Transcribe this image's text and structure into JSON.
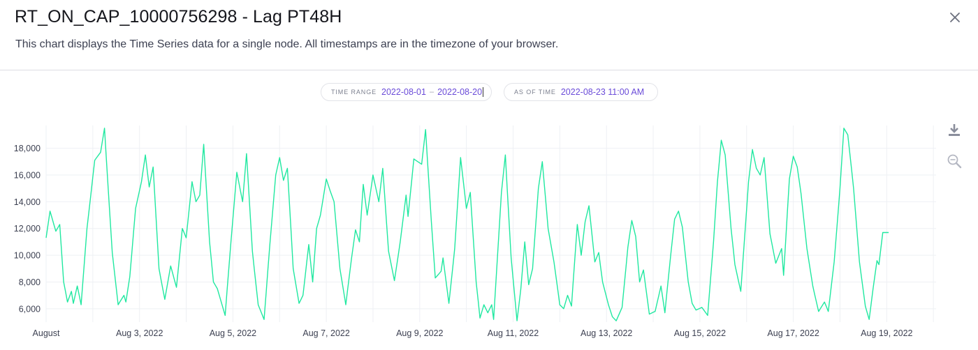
{
  "header": {
    "title": "RT_ON_CAP_10000756298 - Lag PT48H",
    "subtitle": "This chart displays the Time Series data for a single node. All timestamps are in the timezone of your browser.",
    "close_icon": "close-icon"
  },
  "controls": {
    "time_range_label": "TIME RANGE",
    "time_range_start": "2022-08-01",
    "time_range_sep": "–",
    "time_range_end": "2022-08-20",
    "as_of_label": "AS OF TIME",
    "as_of_value": "2022-08-23 11:00 AM"
  },
  "toolbar": {
    "download_icon": "download-icon",
    "zoom_icon": "zoom-out-icon"
  },
  "colors": {
    "line": "#20e8a0",
    "accent": "#6a4bd8",
    "axis_text": "#3d4152",
    "grid": "#eef0f4"
  },
  "chart_data": {
    "type": "line",
    "xlabel": "",
    "ylabel": "",
    "x_unit": "date",
    "x_range": [
      "2022-08-01",
      "2022-08-19 22:00"
    ],
    "x_ticks": [
      "August",
      "Aug 3, 2022",
      "Aug 5, 2022",
      "Aug 7, 2022",
      "Aug 9, 2022",
      "Aug 11, 2022",
      "Aug 13, 2022",
      "Aug 15, 2022",
      "Aug 17, 2022",
      "Aug 19, 2022"
    ],
    "y_ticks": [
      "6,000",
      "8,000",
      "10,000",
      "12,000",
      "14,000",
      "16,000",
      "18,000"
    ],
    "ylim": [
      5000,
      19700
    ],
    "grid": true,
    "sample_interval_hours": 1,
    "keypoints": [
      [
        "2022-08-01 00:00",
        11300
      ],
      [
        "2022-08-01 02:00",
        13300
      ],
      [
        "2022-08-01 05:00",
        11800
      ],
      [
        "2022-08-01 07:00",
        12300
      ],
      [
        "2022-08-01 09:00",
        8000
      ],
      [
        "2022-08-01 11:00",
        6500
      ],
      [
        "2022-08-01 13:00",
        7300
      ],
      [
        "2022-08-01 14:00",
        6400
      ],
      [
        "2022-08-01 16:00",
        7700
      ],
      [
        "2022-08-01 18:00",
        6300
      ],
      [
        "2022-08-01 21:00",
        12000
      ],
      [
        "2022-08-02 01:00",
        17100
      ],
      [
        "2022-08-02 04:00",
        17700
      ],
      [
        "2022-08-02 06:00",
        19500
      ],
      [
        "2022-08-02 08:00",
        14800
      ],
      [
        "2022-08-02 10:00",
        10200
      ],
      [
        "2022-08-02 13:00",
        6300
      ],
      [
        "2022-08-02 16:00",
        7000
      ],
      [
        "2022-08-02 17:00",
        6500
      ],
      [
        "2022-08-02 19:00",
        8400
      ],
      [
        "2022-08-02 22:00",
        13500
      ],
      [
        "2022-08-03 01:00",
        15500
      ],
      [
        "2022-08-03 03:00",
        17500
      ],
      [
        "2022-08-03 05:00",
        15100
      ],
      [
        "2022-08-03 07:00",
        16600
      ],
      [
        "2022-08-03 10:00",
        9000
      ],
      [
        "2022-08-03 13:00",
        6700
      ],
      [
        "2022-08-03 16:00",
        9200
      ],
      [
        "2022-08-03 19:00",
        7600
      ],
      [
        "2022-08-03 22:00",
        12000
      ],
      [
        "2022-08-04 00:00",
        11300
      ],
      [
        "2022-08-04 03:00",
        15500
      ],
      [
        "2022-08-04 05:00",
        14000
      ],
      [
        "2022-08-04 07:00",
        14500
      ],
      [
        "2022-08-04 09:00",
        18300
      ],
      [
        "2022-08-04 12:00",
        11000
      ],
      [
        "2022-08-04 14:00",
        8000
      ],
      [
        "2022-08-04 16:00",
        7500
      ],
      [
        "2022-08-04 19:00",
        6000
      ],
      [
        "2022-08-04 20:00",
        5500
      ],
      [
        "2022-08-04 23:00",
        11000
      ],
      [
        "2022-08-05 02:00",
        16200
      ],
      [
        "2022-08-05 05:00",
        14000
      ],
      [
        "2022-08-05 07:00",
        17600
      ],
      [
        "2022-08-05 10:00",
        10300
      ],
      [
        "2022-08-05 13:00",
        6300
      ],
      [
        "2022-08-05 16:00",
        5200
      ],
      [
        "2022-08-05 19:00",
        10800
      ],
      [
        "2022-08-05 22:00",
        16000
      ],
      [
        "2022-08-06 00:00",
        17300
      ],
      [
        "2022-08-06 02:00",
        15600
      ],
      [
        "2022-08-06 04:00",
        16500
      ],
      [
        "2022-08-06 07:00",
        9000
      ],
      [
        "2022-08-06 10:00",
        6400
      ],
      [
        "2022-08-06 12:00",
        7000
      ],
      [
        "2022-08-06 15:00",
        10800
      ],
      [
        "2022-08-06 17:00",
        8000
      ],
      [
        "2022-08-06 19:00",
        12000
      ],
      [
        "2022-08-06 21:00",
        13000
      ],
      [
        "2022-08-07 00:00",
        15700
      ],
      [
        "2022-08-07 02:00",
        14800
      ],
      [
        "2022-08-07 04:00",
        14000
      ],
      [
        "2022-08-07 07:00",
        9000
      ],
      [
        "2022-08-07 10:00",
        6300
      ],
      [
        "2022-08-07 13:00",
        9800
      ],
      [
        "2022-08-07 15:00",
        11900
      ],
      [
        "2022-08-07 17:00",
        11000
      ],
      [
        "2022-08-07 19:00",
        15300
      ],
      [
        "2022-08-07 21:00",
        13000
      ],
      [
        "2022-08-08 00:00",
        16000
      ],
      [
        "2022-08-08 03:00",
        14000
      ],
      [
        "2022-08-08 05:00",
        16500
      ],
      [
        "2022-08-08 08:00",
        10300
      ],
      [
        "2022-08-08 11:00",
        8100
      ],
      [
        "2022-08-08 14:00",
        11000
      ],
      [
        "2022-08-08 17:00",
        14500
      ],
      [
        "2022-08-08 18:00",
        12900
      ],
      [
        "2022-08-08 21:00",
        17200
      ],
      [
        "2022-08-09 01:00",
        16800
      ],
      [
        "2022-08-09 03:00",
        19400
      ],
      [
        "2022-08-09 06:00",
        12500
      ],
      [
        "2022-08-09 08:00",
        8300
      ],
      [
        "2022-08-09 11:00",
        8800
      ],
      [
        "2022-08-09 12:00",
        9800
      ],
      [
        "2022-08-09 15:00",
        6400
      ],
      [
        "2022-08-09 18:00",
        10500
      ],
      [
        "2022-08-09 21:00",
        17300
      ],
      [
        "2022-08-10 00:00",
        13500
      ],
      [
        "2022-08-10 02:00",
        14700
      ],
      [
        "2022-08-10 05:00",
        8000
      ],
      [
        "2022-08-10 07:00",
        5300
      ],
      [
        "2022-08-10 09:00",
        6300
      ],
      [
        "2022-08-10 11:00",
        5700
      ],
      [
        "2022-08-10 13:00",
        6300
      ],
      [
        "2022-08-10 14:00",
        5200
      ],
      [
        "2022-08-10 18:00",
        14700
      ],
      [
        "2022-08-10 20:00",
        17500
      ],
      [
        "2022-08-10 23:00",
        9800
      ],
      [
        "2022-08-11 02:00",
        5100
      ],
      [
        "2022-08-11 04:00",
        7500
      ],
      [
        "2022-08-11 06:00",
        11000
      ],
      [
        "2022-08-11 08:00",
        7800
      ],
      [
        "2022-08-11 10:00",
        9000
      ],
      [
        "2022-08-11 13:00",
        15000
      ],
      [
        "2022-08-11 15:00",
        17000
      ],
      [
        "2022-08-11 18:00",
        12000
      ],
      [
        "2022-08-11 21:00",
        9500
      ],
      [
        "2022-08-12 00:00",
        6300
      ],
      [
        "2022-08-12 02:00",
        6000
      ],
      [
        "2022-08-12 04:00",
        7000
      ],
      [
        "2022-08-12 06:00",
        6200
      ],
      [
        "2022-08-12 09:00",
        12300
      ],
      [
        "2022-08-12 11:00",
        10000
      ],
      [
        "2022-08-12 13:00",
        12500
      ],
      [
        "2022-08-12 15:00",
        13700
      ],
      [
        "2022-08-12 18:00",
        9500
      ],
      [
        "2022-08-12 20:00",
        10200
      ],
      [
        "2022-08-12 22:00",
        8000
      ],
      [
        "2022-08-13 01:00",
        6300
      ],
      [
        "2022-08-13 03:00",
        5400
      ],
      [
        "2022-08-13 05:00",
        5100
      ],
      [
        "2022-08-13 08:00",
        6100
      ],
      [
        "2022-08-13 11:00",
        10600
      ],
      [
        "2022-08-13 13:00",
        12600
      ],
      [
        "2022-08-13 15:00",
        11400
      ],
      [
        "2022-08-13 17:00",
        8000
      ],
      [
        "2022-08-13 19:00",
        8900
      ],
      [
        "2022-08-13 22:00",
        5600
      ],
      [
        "2022-08-14 01:00",
        5800
      ],
      [
        "2022-08-14 04:00",
        7700
      ],
      [
        "2022-08-14 06:00",
        5700
      ],
      [
        "2022-08-14 09:00",
        10000
      ],
      [
        "2022-08-14 11:00",
        12700
      ],
      [
        "2022-08-14 13:00",
        13300
      ],
      [
        "2022-08-14 15:00",
        12100
      ],
      [
        "2022-08-14 18:00",
        8000
      ],
      [
        "2022-08-14 20:00",
        6400
      ],
      [
        "2022-08-14 22:00",
        5900
      ],
      [
        "2022-08-15 01:00",
        6100
      ],
      [
        "2022-08-15 04:00",
        5500
      ],
      [
        "2022-08-15 07:00",
        11000
      ],
      [
        "2022-08-15 09:00",
        15500
      ],
      [
        "2022-08-15 11:00",
        18600
      ],
      [
        "2022-08-15 13:00",
        17500
      ],
      [
        "2022-08-15 16:00",
        12000
      ],
      [
        "2022-08-15 18:00",
        9300
      ],
      [
        "2022-08-15 21:00",
        7300
      ],
      [
        "2022-08-16 01:00",
        15500
      ],
      [
        "2022-08-16 03:00",
        17900
      ],
      [
        "2022-08-16 05:00",
        16500
      ],
      [
        "2022-08-16 07:00",
        16000
      ],
      [
        "2022-08-16 09:00",
        17300
      ],
      [
        "2022-08-16 12:00",
        11600
      ],
      [
        "2022-08-16 15:00",
        9400
      ],
      [
        "2022-08-16 18:00",
        10500
      ],
      [
        "2022-08-16 19:00",
        8500
      ],
      [
        "2022-08-16 22:00",
        15700
      ],
      [
        "2022-08-17 00:00",
        17400
      ],
      [
        "2022-08-17 02:00",
        16600
      ],
      [
        "2022-08-17 04:00",
        14600
      ],
      [
        "2022-08-17 07:00",
        10500
      ],
      [
        "2022-08-17 10:00",
        7700
      ],
      [
        "2022-08-17 13:00",
        5800
      ],
      [
        "2022-08-17 16:00",
        6500
      ],
      [
        "2022-08-17 18:00",
        5800
      ],
      [
        "2022-08-17 21:00",
        9500
      ],
      [
        "2022-08-18 00:00",
        15000
      ],
      [
        "2022-08-18 02:00",
        19500
      ],
      [
        "2022-08-18 04:00",
        19000
      ],
      [
        "2022-08-18 07:00",
        15000
      ],
      [
        "2022-08-18 10:00",
        9500
      ],
      [
        "2022-08-18 13:00",
        6200
      ],
      [
        "2022-08-18 15:00",
        5200
      ],
      [
        "2022-08-18 17:00",
        7500
      ],
      [
        "2022-08-18 19:00",
        9600
      ],
      [
        "2022-08-18 20:00",
        9300
      ],
      [
        "2022-08-18 22:00",
        11700
      ],
      [
        "2022-08-19 01:00",
        11700
      ]
    ]
  }
}
